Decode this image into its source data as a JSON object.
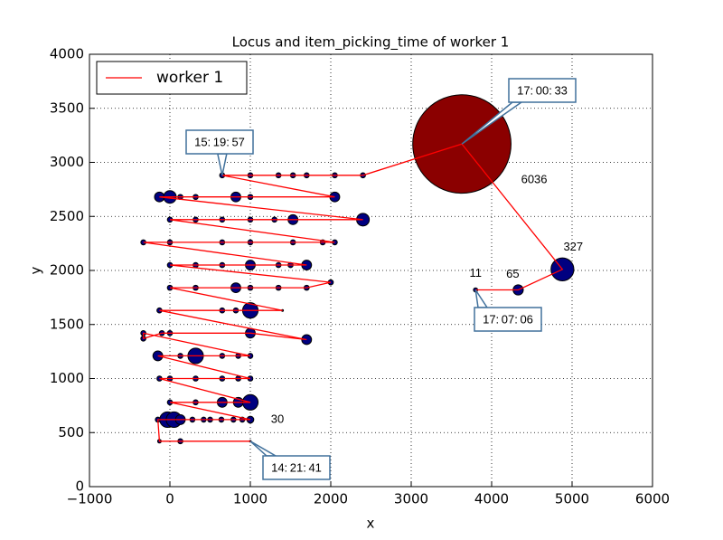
{
  "chart_data": {
    "type": "scatter",
    "title": "Locus and item_picking_time of worker 1",
    "xlabel": "x",
    "ylabel": "y",
    "xlim": [
      -1000,
      6000
    ],
    "xticks": [
      {
        "value": -1000,
        "label": "−1000"
      },
      0,
      1000,
      2000,
      3000,
      4000,
      5000,
      6000
    ],
    "ylim": [
      0,
      4000
    ],
    "yticks": [
      0,
      500,
      1000,
      1500,
      2000,
      2500,
      3000,
      3500,
      4000
    ],
    "grid": true,
    "legend": "upper left",
    "point_color": "#000080",
    "max_point_color": "#8b0000",
    "series": [
      {
        "name": "worker 1",
        "color": "#ff0000",
        "x": [
          1000,
          130,
          -130,
          -150,
          -30,
          50,
          130,
          280,
          420,
          500,
          640,
          790,
          900,
          1000,
          0,
          320,
          650,
          850,
          1000,
          -130,
          0,
          320,
          650,
          850,
          1000,
          -150,
          130,
          320,
          650,
          850,
          1000,
          -330,
          -330,
          -100,
          0,
          1000,
          1700,
          -130,
          650,
          820,
          1000,
          1400,
          0,
          320,
          820,
          1000,
          1350,
          1700,
          2000,
          0,
          320,
          650,
          1000,
          1350,
          1500,
          1700,
          -330,
          0,
          650,
          1000,
          1530,
          1900,
          2050,
          0,
          320,
          650,
          1000,
          1300,
          1530,
          2400,
          -130,
          0,
          130,
          320,
          820,
          1000,
          2050,
          650,
          1000,
          1350,
          1530,
          1700,
          2050,
          2400,
          3630,
          4880,
          4330,
          3800
        ],
        "y": [
          420,
          420,
          420,
          620,
          620,
          620,
          620,
          620,
          620,
          620,
          620,
          620,
          620,
          620,
          780,
          780,
          780,
          780,
          780,
          1000,
          1000,
          1000,
          1000,
          1000,
          1000,
          1210,
          1210,
          1210,
          1210,
          1210,
          1210,
          1420,
          1370,
          1420,
          1420,
          1420,
          1360,
          1630,
          1630,
          1630,
          1630,
          1630,
          1840,
          1840,
          1840,
          1840,
          1840,
          1840,
          1890,
          2050,
          2050,
          2050,
          2050,
          2050,
          2050,
          2050,
          2260,
          2260,
          2260,
          2260,
          2260,
          2260,
          2260,
          2470,
          2470,
          2470,
          2470,
          2470,
          2470,
          2470,
          2680,
          2680,
          2680,
          2680,
          2680,
          2680,
          2680,
          2880,
          2880,
          2880,
          2880,
          2880,
          2880,
          2880,
          3170,
          2010,
          1820,
          1820
        ],
        "sizes": [
          2,
          16,
          8,
          16,
          150,
          150,
          60,
          16,
          16,
          16,
          16,
          16,
          16,
          30,
          16,
          16,
          60,
          60,
          150,
          16,
          16,
          16,
          16,
          16,
          16,
          60,
          16,
          150,
          16,
          16,
          16,
          16,
          16,
          16,
          16,
          60,
          60,
          16,
          16,
          16,
          150,
          2,
          16,
          16,
          60,
          16,
          16,
          16,
          16,
          16,
          16,
          16,
          60,
          16,
          16,
          60,
          16,
          16,
          16,
          16,
          16,
          16,
          16,
          16,
          16,
          16,
          16,
          16,
          60,
          100,
          60,
          100,
          16,
          16,
          60,
          16,
          60,
          16,
          16,
          16,
          16,
          16,
          16,
          16,
          6036,
          327,
          65,
          11
        ]
      }
    ],
    "annotations": [
      "14: 21: 41",
      "15: 19: 57",
      "17: 00: 33",
      "17: 07: 06"
    ]
  }
}
